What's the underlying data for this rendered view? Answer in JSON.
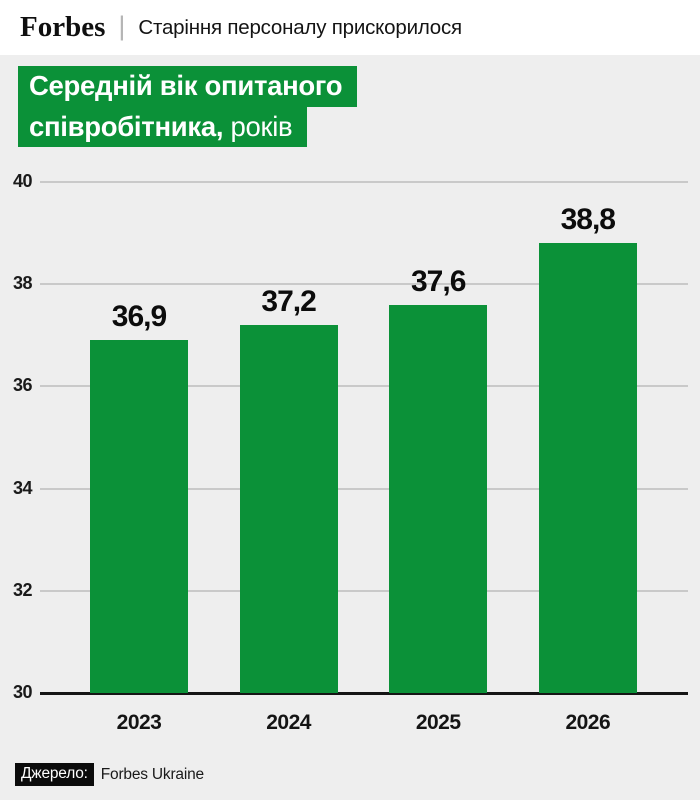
{
  "header": {
    "logo": "Forbes",
    "divider": "|",
    "tagline": "Старіння персоналу прискорилося"
  },
  "title": {
    "line1": "Середній вік опитаного",
    "line2_bold": "співробітника,",
    "line2_regular": " років"
  },
  "colors": {
    "accent_green": "#0b9138",
    "background": "#eeeeee",
    "header_background": "#ffffff",
    "gridline": "#c9c9c9",
    "axis_line": "#151515",
    "value_text": "#0c0c0c",
    "source_badge_bg": "#0b0b0b"
  },
  "chart_data": {
    "type": "bar",
    "categories": [
      "2023",
      "2024",
      "2025",
      "2026"
    ],
    "values": [
      36.9,
      37.2,
      37.6,
      38.8
    ],
    "value_labels": [
      "36,9",
      "37,2",
      "37,6",
      "38,8"
    ],
    "series_name": "Середній вік опитаного співробітника",
    "title": "Середній вік опитаного співробітника, років",
    "xlabel": "",
    "ylabel": "років",
    "ylim": [
      30,
      40
    ],
    "yticks": [
      40,
      38,
      36,
      34,
      32,
      30
    ],
    "grid": true,
    "legend_position": "none",
    "bar_color": "#0b9138"
  },
  "source": {
    "label": "Джерело:",
    "value": "Forbes Ukraine"
  }
}
